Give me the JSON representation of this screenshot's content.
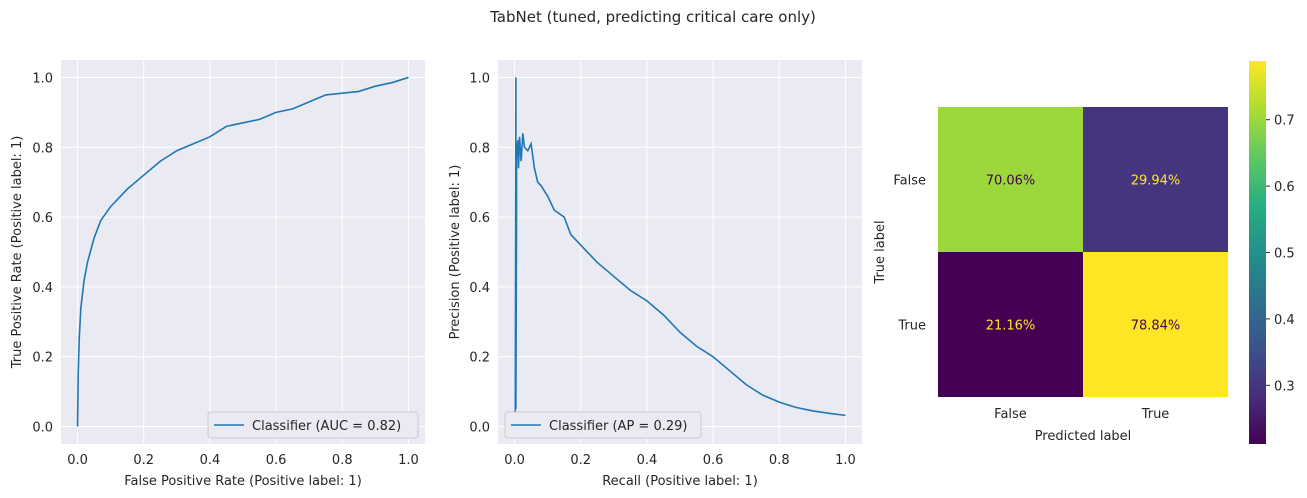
{
  "figure_title": "TabNet (tuned, predicting critical care only)",
  "chart_data": [
    {
      "type": "line",
      "title": "",
      "xlabel": "False Positive Rate (Positive label: 1)",
      "ylabel": "True Positive Rate (Positive label: 1)",
      "xlim": [
        -0.05,
        1.05
      ],
      "ylim": [
        -0.05,
        1.05
      ],
      "xticks": [
        "0.0",
        "0.2",
        "0.4",
        "0.6",
        "0.8",
        "1.0"
      ],
      "yticks": [
        "0.0",
        "0.2",
        "0.4",
        "0.6",
        "0.8",
        "1.0"
      ],
      "grid": true,
      "legend_position": "lower-right",
      "series": [
        {
          "name": "Classifier (AUC = 0.82)",
          "color": "#1f77b4",
          "x": [
            0.0,
            0.002,
            0.005,
            0.01,
            0.02,
            0.03,
            0.05,
            0.07,
            0.1,
            0.13,
            0.15,
            0.2,
            0.25,
            0.3,
            0.35,
            0.4,
            0.45,
            0.5,
            0.55,
            0.6,
            0.65,
            0.7,
            0.75,
            0.8,
            0.85,
            0.9,
            0.95,
            1.0
          ],
          "y": [
            0.0,
            0.15,
            0.25,
            0.34,
            0.42,
            0.47,
            0.54,
            0.59,
            0.63,
            0.66,
            0.68,
            0.72,
            0.76,
            0.79,
            0.81,
            0.83,
            0.86,
            0.87,
            0.88,
            0.9,
            0.91,
            0.93,
            0.95,
            0.955,
            0.96,
            0.975,
            0.985,
            1.0
          ]
        }
      ]
    },
    {
      "type": "line",
      "title": "",
      "xlabel": "Recall (Positive label: 1)",
      "ylabel": "Precision (Positive label: 1)",
      "xlim": [
        -0.05,
        1.05
      ],
      "ylim": [
        -0.05,
        1.05
      ],
      "xticks": [
        "0.0",
        "0.2",
        "0.4",
        "0.6",
        "0.8",
        "1.0"
      ],
      "yticks": [
        "0.0",
        "0.2",
        "0.4",
        "0.6",
        "0.8",
        "1.0"
      ],
      "grid": true,
      "legend_position": "lower-left",
      "series": [
        {
          "name": "Classifier (AP = 0.29)",
          "color": "#1f77b4",
          "x": [
            0.0,
            0.002,
            0.004,
            0.004,
            0.006,
            0.006,
            0.008,
            0.01,
            0.012,
            0.015,
            0.02,
            0.025,
            0.03,
            0.04,
            0.05,
            0.06,
            0.07,
            0.08,
            0.1,
            0.12,
            0.15,
            0.17,
            0.2,
            0.25,
            0.3,
            0.35,
            0.4,
            0.45,
            0.5,
            0.55,
            0.6,
            0.65,
            0.7,
            0.75,
            0.8,
            0.85,
            0.9,
            0.95,
            1.0
          ],
          "y": [
            0.0,
            0.03,
            1.0,
            0.05,
            0.6,
            0.78,
            0.8,
            0.82,
            0.74,
            0.83,
            0.76,
            0.84,
            0.8,
            0.79,
            0.81,
            0.74,
            0.7,
            0.69,
            0.66,
            0.62,
            0.6,
            0.55,
            0.52,
            0.47,
            0.43,
            0.39,
            0.36,
            0.32,
            0.27,
            0.23,
            0.2,
            0.16,
            0.12,
            0.09,
            0.07,
            0.055,
            0.045,
            0.038,
            0.032
          ]
        }
      ]
    },
    {
      "type": "heatmap",
      "title": "",
      "xlabel": "Predicted label",
      "ylabel": "True label",
      "x_categories": [
        "False",
        "True"
      ],
      "y_categories": [
        "False",
        "True"
      ],
      "values": [
        [
          0.7006,
          0.2994
        ],
        [
          0.2116,
          0.7884
        ]
      ],
      "cell_labels": [
        [
          "70.06%",
          "29.94%"
        ],
        [
          "21.16%",
          "78.84%"
        ]
      ],
      "colormap": "viridis",
      "colorbar": {
        "min": 0.2116,
        "max": 0.7884,
        "ticks": [
          "0.3",
          "0.4",
          "0.5",
          "0.6",
          "0.7"
        ]
      },
      "grid": false
    }
  ]
}
